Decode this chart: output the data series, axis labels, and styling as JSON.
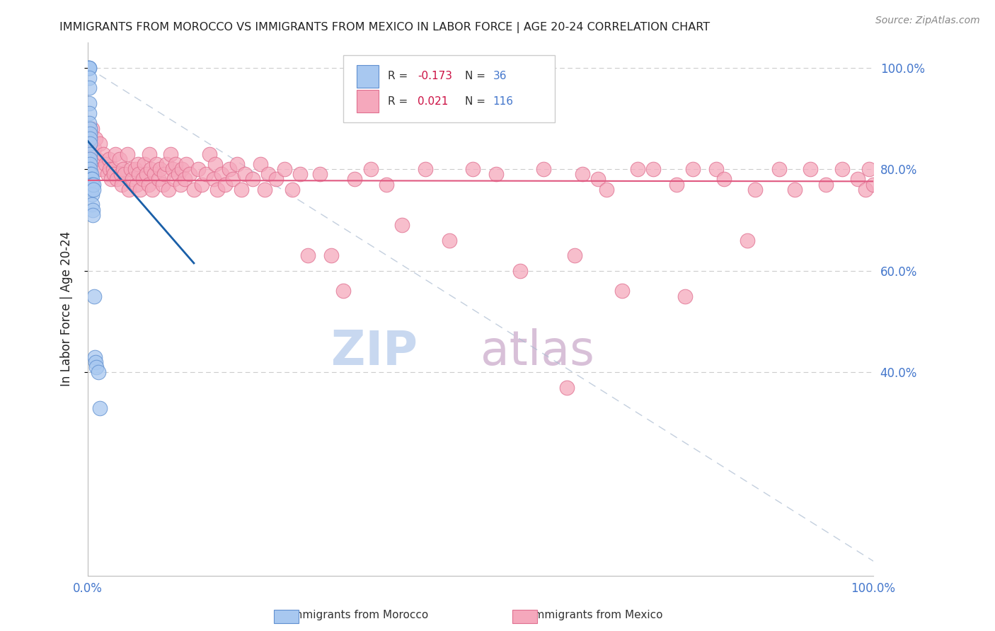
{
  "title": "IMMIGRANTS FROM MOROCCO VS IMMIGRANTS FROM MEXICO IN LABOR FORCE | AGE 20-24 CORRELATION CHART",
  "source": "Source: ZipAtlas.com",
  "ylabel": "In Labor Force | Age 20-24",
  "morocco_R": -0.173,
  "morocco_N": 36,
  "mexico_R": 0.021,
  "mexico_N": 116,
  "legend_label_morocco": "Immigrants from Morocco",
  "legend_label_mexico": "Immigrants from Mexico",
  "morocco_color": "#A8C8F0",
  "mexico_color": "#F5A8BC",
  "morocco_edge": "#6090D0",
  "mexico_edge": "#E07090",
  "regression_morocco_color": "#1a5fa8",
  "regression_mexico_color": "#e05880",
  "title_color": "#222222",
  "axis_label_color": "#4477CC",
  "grid_color": "#CCCCCC",
  "watermark_color_zip": "#C8D8F0",
  "watermark_color_atlas": "#D8C8E8",
  "background_color": "#FFFFFF",
  "morocco_x": [
    0.001,
    0.001,
    0.002,
    0.002,
    0.002,
    0.002,
    0.002,
    0.002,
    0.002,
    0.003,
    0.003,
    0.003,
    0.003,
    0.003,
    0.003,
    0.003,
    0.003,
    0.003,
    0.004,
    0.004,
    0.004,
    0.004,
    0.005,
    0.005,
    0.005,
    0.005,
    0.006,
    0.006,
    0.007,
    0.007,
    0.008,
    0.009,
    0.01,
    0.011,
    0.013,
    0.015
  ],
  "morocco_y": [
    1.0,
    1.0,
    1.0,
    1.0,
    0.98,
    0.96,
    0.93,
    0.91,
    0.89,
    0.88,
    0.87,
    0.86,
    0.85,
    0.83,
    0.82,
    0.81,
    0.8,
    0.79,
    0.79,
    0.78,
    0.77,
    0.76,
    0.78,
    0.77,
    0.75,
    0.73,
    0.72,
    0.71,
    0.77,
    0.76,
    0.55,
    0.43,
    0.42,
    0.41,
    0.4,
    0.33
  ],
  "mexico_x": [
    0.005,
    0.008,
    0.01,
    0.012,
    0.015,
    0.017,
    0.02,
    0.022,
    0.025,
    0.027,
    0.028,
    0.03,
    0.032,
    0.033,
    0.035,
    0.037,
    0.04,
    0.042,
    0.043,
    0.045,
    0.047,
    0.05,
    0.052,
    0.055,
    0.057,
    0.06,
    0.062,
    0.064,
    0.065,
    0.067,
    0.07,
    0.072,
    0.075,
    0.077,
    0.078,
    0.08,
    0.082,
    0.085,
    0.087,
    0.09,
    0.092,
    0.095,
    0.097,
    0.1,
    0.103,
    0.105,
    0.108,
    0.11,
    0.112,
    0.115,
    0.118,
    0.12,
    0.123,
    0.125,
    0.13,
    0.135,
    0.14,
    0.145,
    0.15,
    0.155,
    0.16,
    0.162,
    0.165,
    0.17,
    0.175,
    0.18,
    0.185,
    0.19,
    0.195,
    0.2,
    0.21,
    0.22,
    0.225,
    0.23,
    0.24,
    0.25,
    0.26,
    0.27,
    0.28,
    0.295,
    0.31,
    0.325,
    0.34,
    0.36,
    0.38,
    0.4,
    0.43,
    0.46,
    0.49,
    0.52,
    0.55,
    0.58,
    0.62,
    0.65,
    0.68,
    0.72,
    0.76,
    0.8,
    0.84,
    0.88,
    0.9,
    0.92,
    0.94,
    0.96,
    0.98,
    0.99,
    0.995,
    1.0,
    0.61,
    0.63,
    0.66,
    0.7,
    0.75,
    0.77,
    0.81,
    0.85
  ],
  "mexico_y": [
    0.88,
    0.84,
    0.86,
    0.82,
    0.85,
    0.8,
    0.83,
    0.81,
    0.79,
    0.82,
    0.8,
    0.78,
    0.8,
    0.79,
    0.83,
    0.78,
    0.82,
    0.79,
    0.77,
    0.8,
    0.79,
    0.83,
    0.76,
    0.8,
    0.78,
    0.8,
    0.77,
    0.81,
    0.79,
    0.76,
    0.78,
    0.81,
    0.79,
    0.77,
    0.83,
    0.8,
    0.76,
    0.79,
    0.81,
    0.78,
    0.8,
    0.77,
    0.79,
    0.81,
    0.76,
    0.83,
    0.8,
    0.78,
    0.81,
    0.79,
    0.77,
    0.8,
    0.78,
    0.81,
    0.79,
    0.76,
    0.8,
    0.77,
    0.79,
    0.83,
    0.78,
    0.81,
    0.76,
    0.79,
    0.77,
    0.8,
    0.78,
    0.81,
    0.76,
    0.79,
    0.78,
    0.81,
    0.76,
    0.79,
    0.78,
    0.8,
    0.76,
    0.79,
    0.63,
    0.79,
    0.63,
    0.56,
    0.78,
    0.8,
    0.77,
    0.69,
    0.8,
    0.66,
    0.8,
    0.79,
    0.6,
    0.8,
    0.63,
    0.78,
    0.56,
    0.8,
    0.55,
    0.8,
    0.66,
    0.8,
    0.76,
    0.8,
    0.77,
    0.8,
    0.78,
    0.76,
    0.8,
    0.77,
    0.37,
    0.79,
    0.76,
    0.8,
    0.77,
    0.8,
    0.78,
    0.76
  ],
  "xlim": [
    0.0,
    1.0
  ],
  "ylim": [
    0.0,
    1.05
  ],
  "ytick_positions": [
    0.4,
    0.6,
    0.8,
    1.0
  ],
  "ytick_labels": [
    "40.0%",
    "60.0%",
    "80.0%",
    "100.0%"
  ],
  "xtick_positions": [
    0.0,
    1.0
  ],
  "xtick_labels": [
    "0.0%",
    "100.0%"
  ]
}
